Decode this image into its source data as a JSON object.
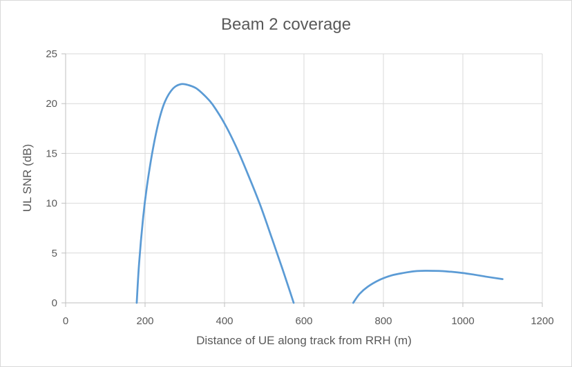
{
  "chart_data": {
    "type": "line",
    "title": "Beam 2 coverage",
    "xlabel": "Distance of UE along track from RRH (m)",
    "ylabel": "UL SNR (dB)",
    "xlim": [
      0,
      1200
    ],
    "ylim": [
      0,
      25
    ],
    "x_ticks": [
      0,
      200,
      400,
      600,
      800,
      1000,
      1200
    ],
    "y_ticks": [
      0,
      5,
      10,
      15,
      20,
      25
    ],
    "grid": true,
    "legend": "none",
    "series": [
      {
        "color": "#5b9bd5",
        "segments": [
          [
            [
              179,
              0
            ],
            [
              185,
              4
            ],
            [
              195,
              8.5
            ],
            [
              205,
              11.8
            ],
            [
              220,
              15.5
            ],
            [
              235,
              18.3
            ],
            [
              250,
              20.2
            ],
            [
              270,
              21.5
            ],
            [
              290,
              21.95
            ],
            [
              310,
              21.85
            ],
            [
              330,
              21.5
            ],
            [
              350,
              20.8
            ],
            [
              370,
              19.9
            ],
            [
              400,
              18.0
            ],
            [
              430,
              15.6
            ],
            [
              460,
              12.8
            ],
            [
              490,
              9.8
            ],
            [
              520,
              6.4
            ],
            [
              545,
              3.5
            ],
            [
              565,
              1.1
            ],
            [
              574,
              0
            ]
          ],
          [
            [
              724,
              0
            ],
            [
              740,
              0.9
            ],
            [
              760,
              1.6
            ],
            [
              790,
              2.3
            ],
            [
              820,
              2.75
            ],
            [
              850,
              3.0
            ],
            [
              880,
              3.18
            ],
            [
              910,
              3.22
            ],
            [
              940,
              3.2
            ],
            [
              970,
              3.12
            ],
            [
              1000,
              3.0
            ],
            [
              1030,
              2.82
            ],
            [
              1060,
              2.62
            ],
            [
              1100,
              2.38
            ]
          ]
        ]
      }
    ]
  }
}
